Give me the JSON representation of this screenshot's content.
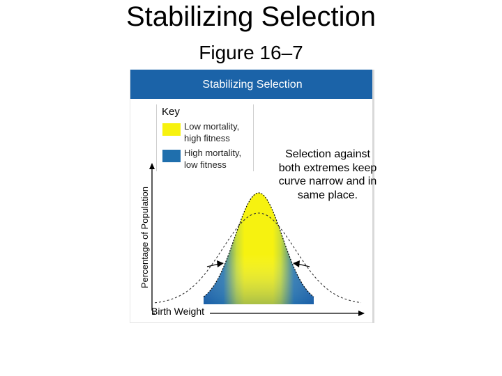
{
  "slide": {
    "title": "Stabilizing Selection",
    "subtitle": "Figure 16–7"
  },
  "figure": {
    "header": "Stabilizing Selection",
    "key": {
      "title": "Key",
      "items": [
        {
          "label_line1": "Low mortality,",
          "label_line2": "high fitness",
          "color": "#f7f20e"
        },
        {
          "label_line1": "High mortality,",
          "label_line2": "low fitness",
          "color": "#1f6fad"
        }
      ]
    },
    "y_axis_label": "Percentage of Population",
    "x_axis_label": "Birth Weight",
    "note": "Selection against both extremes keep curve narrow and in same place."
  },
  "colors": {
    "header_bg": "#1b63a8",
    "high_fitness": "#f7f20e",
    "low_fitness": "#1f6fad"
  }
}
